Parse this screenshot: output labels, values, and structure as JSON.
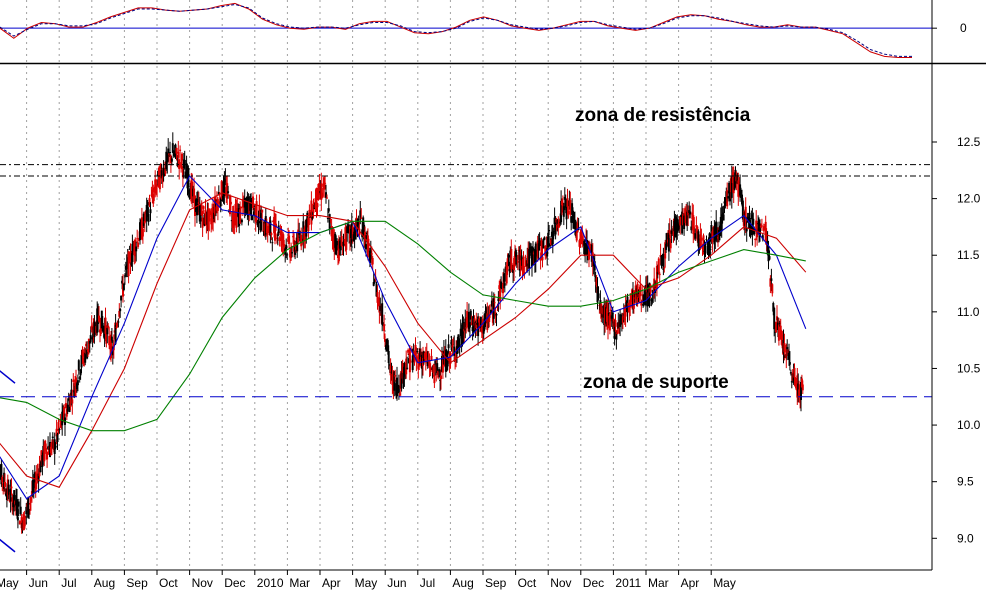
{
  "chart_data": [
    {
      "type": "line",
      "title": "",
      "ylim": [
        -0.3,
        0.25
      ],
      "ytick_labels": [
        {
          "value": 0,
          "label": "0"
        }
      ],
      "reference_line": 0,
      "grid": true,
      "series": [
        {
          "style": "solid",
          "color": "#cc0000",
          "y": [
            0.0,
            -0.09,
            0.0,
            0.05,
            0.04,
            0.01,
            0.01,
            0.05,
            0.1,
            0.14,
            0.18,
            0.18,
            0.16,
            0.15,
            0.16,
            0.17,
            0.2,
            0.22,
            0.17,
            0.08,
            0.03,
            0.0,
            -0.01,
            0.01,
            0.01,
            -0.01,
            0.04,
            0.06,
            0.06,
            0.01,
            -0.04,
            -0.05,
            -0.03,
            0.01,
            0.07,
            0.1,
            0.07,
            0.02,
            0.0,
            -0.02,
            0.0,
            0.03,
            0.06,
            0.06,
            0.02,
            0.0,
            -0.02,
            0.0,
            0.05,
            0.1,
            0.12,
            0.11,
            0.08,
            0.06,
            0.03,
            0.01,
            0.01,
            0.03,
            0.01,
            0.01,
            -0.02,
            -0.05,
            -0.13,
            -0.21,
            -0.25,
            -0.26,
            -0.26
          ]
        },
        {
          "style": "dashed",
          "color": "#000080",
          "y": [
            0.01,
            -0.07,
            -0.01,
            0.04,
            0.04,
            0.02,
            0.02,
            0.04,
            0.09,
            0.13,
            0.17,
            0.17,
            0.16,
            0.15,
            0.16,
            0.17,
            0.19,
            0.21,
            0.18,
            0.09,
            0.04,
            0.01,
            0.0,
            0.01,
            0.01,
            0.0,
            0.03,
            0.05,
            0.05,
            0.02,
            -0.03,
            -0.04,
            -0.03,
            0.0,
            0.06,
            0.09,
            0.07,
            0.03,
            0.01,
            -0.01,
            0.0,
            0.02,
            0.05,
            0.06,
            0.03,
            0.01,
            -0.01,
            0.0,
            0.04,
            0.09,
            0.11,
            0.11,
            0.09,
            0.06,
            0.04,
            0.02,
            0.01,
            0.02,
            0.01,
            0.01,
            -0.01,
            -0.04,
            -0.11,
            -0.19,
            -0.23,
            -0.25,
            -0.25
          ]
        }
      ]
    },
    {
      "type": "candlestick",
      "title": "",
      "ylim": [
        8.72,
        13.18
      ],
      "ytick_labels": [
        "9.0",
        "9.5",
        "10.0",
        "10.5",
        "11.0",
        "11.5",
        "12.0",
        "12.5"
      ],
      "ytick_values": [
        9.0,
        9.5,
        10.0,
        10.5,
        11.0,
        11.5,
        12.0,
        12.5
      ],
      "xtick_labels": [
        "May",
        "Jun",
        "Jul",
        "Aug",
        "Sep",
        "Oct",
        "Nov",
        "Dec",
        "2010",
        "Mar",
        "Apr",
        "May",
        "Jun",
        "Jul",
        "Aug",
        "Sep",
        "Oct",
        "Nov",
        "Dec",
        "2011",
        "Mar",
        "Apr",
        "May"
      ],
      "x_start": "2009-05-01",
      "grid": true,
      "annotations": [
        "zona de resistência",
        "zona de suporte"
      ],
      "horizontal_lines": [
        {
          "value": 12.3,
          "style": "dash-dot",
          "color": "#000000"
        },
        {
          "value": 12.2,
          "style": "dash-dot",
          "color": "#000000"
        },
        {
          "value": 10.25,
          "style": "dashed",
          "color": "#0000cc"
        }
      ],
      "trend_lines": [
        {
          "color": "#0000cc",
          "from": [
            "2009-05-01",
            10.52
          ],
          "to": [
            "2009-05-21",
            10.37
          ]
        },
        {
          "color": "#0000cc",
          "from": [
            "2009-05-01",
            9.03
          ],
          "to": [
            "2009-05-21",
            8.88
          ]
        }
      ],
      "series": [
        {
          "name": "",
          "color": "#000000",
          "role": "price",
          "dates": [
            "2009-05-01",
            "2009-05-08",
            "2009-05-15",
            "2009-05-22",
            "2009-05-29",
            "2009-06-05",
            "2009-06-12",
            "2009-06-19",
            "2009-06-26",
            "2009-07-03",
            "2009-07-10",
            "2009-07-17",
            "2009-07-24",
            "2009-07-31",
            "2009-08-07",
            "2009-08-14",
            "2009-08-21",
            "2009-08-28",
            "2009-09-04",
            "2009-09-11",
            "2009-09-18",
            "2009-09-25",
            "2009-10-02",
            "2009-10-09",
            "2009-10-16",
            "2009-10-23",
            "2009-10-30",
            "2009-11-06",
            "2009-11-13",
            "2009-11-20",
            "2009-11-27",
            "2009-12-04",
            "2009-12-11",
            "2009-12-18",
            "2009-12-25",
            "2010-01-01",
            "2010-01-08",
            "2010-01-15",
            "2010-01-22",
            "2010-01-29",
            "2010-02-05",
            "2010-02-12",
            "2010-02-19",
            "2010-02-26",
            "2010-03-05",
            "2010-03-12",
            "2010-03-19",
            "2010-03-26",
            "2010-04-02",
            "2010-04-09",
            "2010-04-16",
            "2010-04-23",
            "2010-04-30",
            "2010-05-07",
            "2010-05-14",
            "2010-05-21",
            "2010-05-28",
            "2010-06-04",
            "2010-06-11",
            "2010-06-18",
            "2010-06-25",
            "2010-07-02",
            "2010-07-09",
            "2010-07-16",
            "2010-07-23",
            "2010-07-30",
            "2010-08-06",
            "2010-08-13",
            "2010-08-20",
            "2010-08-27",
            "2010-09-03",
            "2010-09-10",
            "2010-09-17",
            "2010-09-24",
            "2010-10-01",
            "2010-10-08",
            "2010-10-15",
            "2010-10-22",
            "2010-10-29",
            "2010-11-05",
            "2010-11-12",
            "2010-11-19",
            "2010-11-26",
            "2010-12-03",
            "2010-12-10",
            "2010-12-17",
            "2010-12-24",
            "2010-12-31",
            "2011-01-07",
            "2011-01-14",
            "2011-01-21",
            "2011-01-28",
            "2011-02-04",
            "2011-02-11",
            "2011-02-18",
            "2011-02-25",
            "2011-03-04",
            "2011-03-11",
            "2011-03-18",
            "2011-03-25",
            "2011-04-01",
            "2011-04-08",
            "2011-04-15",
            "2011-04-22",
            "2011-04-29",
            "2011-05-06",
            "2011-05-13",
            "2011-05-20",
            "2011-05-27"
          ],
          "close": [
            9.75,
            9.55,
            9.4,
            9.3,
            9.15,
            9.35,
            9.6,
            9.8,
            9.8,
            10.0,
            10.2,
            10.4,
            10.6,
            10.75,
            10.95,
            10.85,
            10.65,
            11.1,
            11.4,
            11.6,
            11.75,
            11.95,
            12.15,
            12.3,
            12.4,
            12.35,
            12.2,
            11.95,
            11.85,
            11.8,
            12.0,
            12.1,
            11.85,
            11.85,
            11.95,
            11.9,
            11.8,
            11.7,
            11.75,
            11.6,
            11.55,
            11.65,
            11.8,
            12.0,
            12.1,
            11.7,
            11.55,
            11.65,
            11.7,
            11.8,
            11.55,
            11.2,
            10.9,
            10.4,
            10.35,
            10.55,
            10.6,
            10.6,
            10.55,
            10.45,
            10.55,
            10.65,
            10.7,
            10.9,
            10.9,
            10.85,
            10.95,
            11.05,
            11.25,
            11.45,
            11.45,
            11.45,
            11.5,
            11.55,
            11.6,
            11.75,
            11.95,
            11.9,
            11.7,
            11.6,
            11.5,
            11.0,
            10.95,
            10.85,
            10.95,
            11.1,
            11.15,
            11.15,
            11.15,
            11.4,
            11.55,
            11.75,
            11.8,
            11.85,
            11.65,
            11.6,
            11.7,
            11.8,
            12.05,
            12.2,
            11.85,
            11.75,
            11.75,
            11.7,
            10.95,
            10.75,
            10.55,
            10.35,
            10.3
          ]
        },
        {
          "name": "",
          "color": "#0000cc",
          "role": "short moving average",
          "dates": [
            "2009-05-01",
            "2009-06-01",
            "2009-07-01",
            "2009-08-01",
            "2009-09-01",
            "2009-10-01",
            "2009-11-01",
            "2009-12-01",
            "2010-01-01",
            "2010-02-01",
            "2010-03-01",
            "2010-04-01",
            "2010-05-01",
            "2010-06-01",
            "2010-07-01",
            "2010-08-01",
            "2010-09-01",
            "2010-10-01",
            "2010-11-01",
            "2010-12-01",
            "2011-01-01",
            "2011-02-01",
            "2011-03-01",
            "2011-04-01",
            "2011-05-01",
            "2011-05-29"
          ],
          "y": [
            9.8,
            9.35,
            9.55,
            10.25,
            10.9,
            11.65,
            12.2,
            11.9,
            11.85,
            11.7,
            11.7,
            11.8,
            11.1,
            10.55,
            10.6,
            10.9,
            11.25,
            11.55,
            11.75,
            11.0,
            11.1,
            11.4,
            11.65,
            11.85,
            11.5,
            10.85
          ]
        },
        {
          "name": "",
          "color": "#cc0000",
          "role": "medium moving average",
          "dates": [
            "2009-05-01",
            "2009-06-01",
            "2009-07-01",
            "2009-08-01",
            "2009-09-01",
            "2009-10-01",
            "2009-11-01",
            "2009-12-01",
            "2010-01-01",
            "2010-02-01",
            "2010-03-01",
            "2010-04-01",
            "2010-05-01",
            "2010-06-01",
            "2010-07-01",
            "2010-08-01",
            "2010-09-01",
            "2010-10-01",
            "2010-11-01",
            "2010-12-01",
            "2011-01-01",
            "2011-02-01",
            "2011-03-01",
            "2011-04-01",
            "2011-05-01",
            "2011-05-29"
          ],
          "y": [
            9.9,
            9.55,
            9.45,
            9.95,
            10.5,
            11.25,
            11.9,
            12.05,
            11.95,
            11.85,
            11.85,
            11.8,
            11.4,
            10.9,
            10.55,
            10.75,
            10.95,
            11.2,
            11.5,
            11.5,
            11.2,
            11.3,
            11.5,
            11.75,
            11.65,
            11.35
          ]
        },
        {
          "name": "",
          "color": "#008000",
          "role": "long moving average",
          "dates": [
            "2009-05-01",
            "2009-06-01",
            "2009-07-01",
            "2009-08-01",
            "2009-09-01",
            "2009-10-01",
            "2009-11-01",
            "2009-12-01",
            "2010-01-01",
            "2010-02-01",
            "2010-03-01",
            "2010-04-01",
            "2010-05-01",
            "2010-06-01",
            "2010-07-01",
            "2010-08-01",
            "2010-09-01",
            "2010-10-01",
            "2010-11-01",
            "2010-12-01",
            "2011-01-01",
            "2011-02-01",
            "2011-03-01",
            "2011-04-01",
            "2011-05-01",
            "2011-05-29"
          ],
          "y": [
            10.25,
            10.2,
            10.05,
            9.95,
            9.95,
            10.05,
            10.45,
            10.95,
            11.3,
            11.55,
            11.7,
            11.8,
            11.8,
            11.6,
            11.35,
            11.15,
            11.1,
            11.05,
            11.05,
            11.1,
            11.2,
            11.35,
            11.45,
            11.55,
            11.5,
            11.45
          ]
        }
      ]
    }
  ]
}
